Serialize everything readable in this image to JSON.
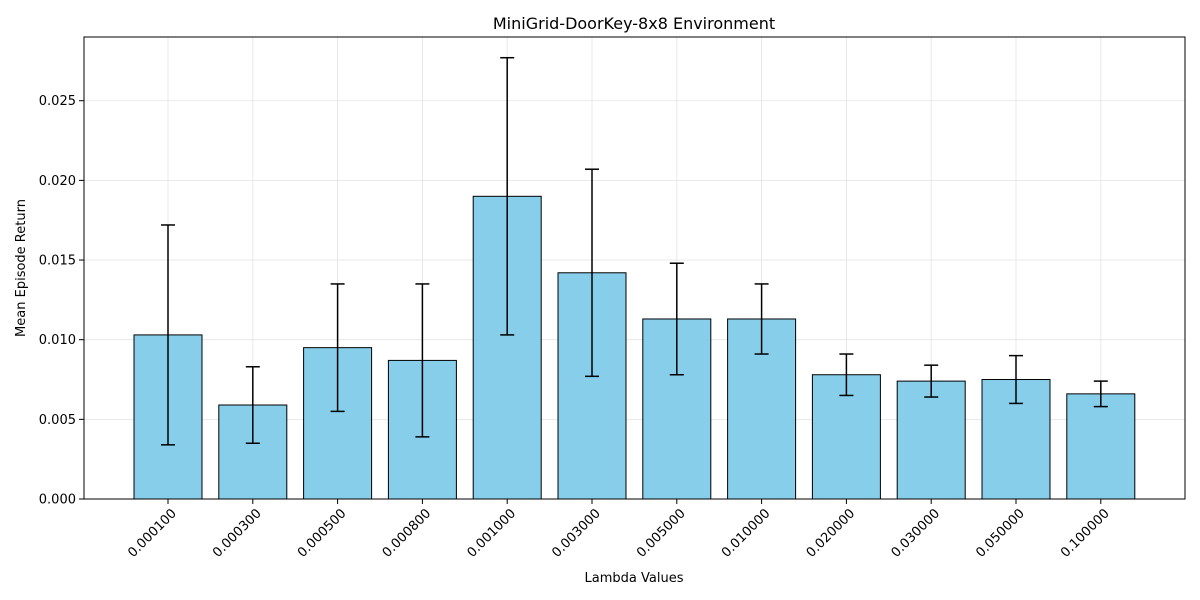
{
  "chart_data": {
    "type": "bar",
    "title": "MiniGrid-DoorKey-8x8 Environment",
    "xlabel": "Lambda Values",
    "ylabel": "Mean Episode Return",
    "categories": [
      "0.000100",
      "0.000300",
      "0.000500",
      "0.000800",
      "0.001000",
      "0.003000",
      "0.005000",
      "0.010000",
      "0.020000",
      "0.030000",
      "0.050000",
      "0.100000"
    ],
    "values": [
      0.0103,
      0.0059,
      0.0095,
      0.0087,
      0.019,
      0.0142,
      0.0113,
      0.0113,
      0.0078,
      0.0074,
      0.0075,
      0.0066
    ],
    "error": [
      0.0069,
      0.0024,
      0.004,
      0.0048,
      0.0087,
      0.0065,
      0.0035,
      0.0022,
      0.0013,
      0.001,
      0.0015,
      0.0008
    ],
    "ylim": [
      0,
      0.029
    ],
    "yticks": [
      0.0,
      0.005,
      0.01,
      0.015,
      0.02,
      0.025
    ],
    "ytick_labels": [
      "0.000",
      "0.005",
      "0.010",
      "0.015",
      "0.020",
      "0.025"
    ],
    "bar_color": "#87ceeb",
    "grid": true
  }
}
